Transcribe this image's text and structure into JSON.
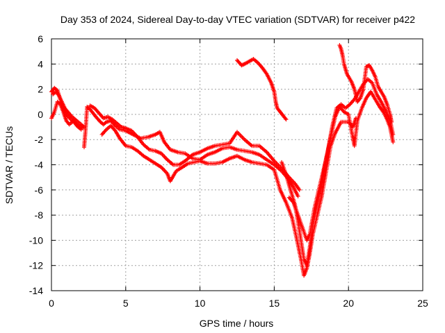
{
  "chart_data": {
    "type": "scatter",
    "title": "Day 353 of 2024, Sidereal Day-to-day VTEC variation (SDTVAR) for receiver p422",
    "xlabel": "GPS time / hours",
    "ylabel": "SDTVAR / TECUs",
    "xlim": [
      0,
      25
    ],
    "ylim": [
      -14,
      6
    ],
    "xticks": [
      0,
      5,
      10,
      15,
      20,
      25
    ],
    "yticks": [
      -14,
      -12,
      -10,
      -8,
      -6,
      -4,
      -2,
      0,
      2,
      4,
      6
    ],
    "grid": true,
    "marker": "+",
    "color": "#ff0000",
    "series": [
      {
        "points": [
          [
            0.0,
            1.8
          ],
          [
            0.2,
            2.1
          ],
          [
            0.4,
            1.9
          ],
          [
            0.6,
            1.2
          ],
          [
            0.8,
            0.6
          ],
          [
            1.0,
            0.0
          ],
          [
            1.3,
            -0.4
          ],
          [
            1.6,
            -0.7
          ],
          [
            1.9,
            -1.0
          ],
          [
            2.1,
            -1.1
          ]
        ]
      },
      {
        "points": [
          [
            0.0,
            -0.3
          ],
          [
            0.2,
            0.2
          ],
          [
            0.4,
            1.0
          ],
          [
            0.6,
            0.8
          ],
          [
            0.8,
            0.2
          ],
          [
            1.0,
            -0.5
          ],
          [
            1.2,
            -0.8
          ],
          [
            1.5,
            -0.5
          ],
          [
            1.7,
            -0.9
          ],
          [
            2.0,
            -1.2
          ]
        ]
      },
      {
        "points": [
          [
            0.1,
            1.6
          ],
          [
            0.3,
            1.8
          ],
          [
            0.5,
            1.5
          ],
          [
            0.7,
            1.0
          ],
          [
            0.9,
            0.5
          ],
          [
            1.1,
            0.2
          ],
          [
            1.4,
            -0.2
          ],
          [
            1.7,
            -0.5
          ],
          [
            2.0,
            -0.8
          ],
          [
            2.2,
            -1.0
          ]
        ]
      },
      {
        "points": [
          [
            2.2,
            -2.6
          ],
          [
            2.3,
            -1.2
          ],
          [
            2.4,
            0.6
          ],
          [
            2.6,
            0.4
          ],
          [
            2.8,
            0.1
          ],
          [
            3.0,
            -0.2
          ],
          [
            3.3,
            -0.6
          ],
          [
            3.5,
            -0.8
          ],
          [
            3.7,
            -0.6
          ],
          [
            4.0,
            -0.5
          ],
          [
            4.3,
            -0.9
          ],
          [
            4.6,
            -1.2
          ],
          [
            5.0,
            -1.3
          ],
          [
            5.5,
            -1.6
          ],
          [
            6.0,
            -1.9
          ],
          [
            6.5,
            -1.8
          ],
          [
            7.0,
            -1.6
          ],
          [
            7.3,
            -1.4
          ],
          [
            7.6,
            -2.2
          ],
          [
            8.0,
            -2.8
          ],
          [
            8.5,
            -3.0
          ],
          [
            9.0,
            -3.1
          ],
          [
            9.5,
            -3.5
          ],
          [
            10.0,
            -3.6
          ],
          [
            10.5,
            -3.2
          ],
          [
            11.0,
            -3.0
          ],
          [
            11.5,
            -2.7
          ],
          [
            12.0,
            -2.6
          ],
          [
            12.5,
            -2.8
          ],
          [
            13.0,
            -2.9
          ],
          [
            13.5,
            -3.0
          ],
          [
            14.0,
            -3.2
          ],
          [
            14.5,
            -3.6
          ],
          [
            15.0,
            -4.0
          ],
          [
            15.5,
            -4.5
          ],
          [
            16.0,
            -5.2
          ],
          [
            16.3,
            -5.8
          ],
          [
            16.6,
            -6.5
          ]
        ]
      },
      {
        "points": [
          [
            2.6,
            0.7
          ],
          [
            2.9,
            0.5
          ],
          [
            3.2,
            0.1
          ],
          [
            3.5,
            -0.3
          ],
          [
            3.8,
            -0.2
          ],
          [
            4.1,
            -0.4
          ],
          [
            4.4,
            -0.7
          ],
          [
            4.7,
            -1.0
          ],
          [
            5.0,
            -1.1
          ],
          [
            5.4,
            -1.3
          ],
          [
            5.8,
            -1.8
          ],
          [
            6.2,
            -2.4
          ],
          [
            6.6,
            -2.8
          ],
          [
            7.0,
            -2.9
          ],
          [
            7.4,
            -3.1
          ],
          [
            7.8,
            -3.6
          ],
          [
            8.2,
            -4.0
          ],
          [
            8.6,
            -4.0
          ],
          [
            9.0,
            -3.7
          ],
          [
            9.5,
            -3.2
          ],
          [
            10.0,
            -3.0
          ],
          [
            10.5,
            -2.7
          ],
          [
            11.0,
            -2.5
          ],
          [
            11.5,
            -2.4
          ],
          [
            12.0,
            -2.3
          ],
          [
            12.5,
            -1.4
          ],
          [
            13.0,
            -2.0
          ],
          [
            13.5,
            -2.5
          ],
          [
            14.0,
            -2.5
          ],
          [
            14.5,
            -3.0
          ],
          [
            15.0,
            -3.7
          ],
          [
            15.5,
            -4.3
          ],
          [
            16.0,
            -5.0
          ],
          [
            16.4,
            -5.5
          ],
          [
            16.7,
            -6.0
          ]
        ]
      },
      {
        "points": [
          [
            3.4,
            -1.6
          ],
          [
            3.7,
            -1.2
          ],
          [
            4.0,
            -0.9
          ],
          [
            4.3,
            -1.3
          ],
          [
            4.6,
            -1.9
          ],
          [
            5.0,
            -2.5
          ],
          [
            5.4,
            -2.6
          ],
          [
            5.8,
            -2.9
          ],
          [
            6.2,
            -3.3
          ],
          [
            6.6,
            -3.6
          ],
          [
            7.0,
            -3.9
          ],
          [
            7.4,
            -4.2
          ],
          [
            7.8,
            -4.7
          ],
          [
            8.0,
            -5.3
          ],
          [
            8.4,
            -4.5
          ],
          [
            8.8,
            -4.2
          ],
          [
            9.2,
            -3.9
          ],
          [
            9.6,
            -3.8
          ],
          [
            10.0,
            -3.7
          ],
          [
            10.5,
            -3.9
          ],
          [
            11.0,
            -3.9
          ],
          [
            11.5,
            -3.8
          ],
          [
            12.0,
            -3.5
          ],
          [
            12.5,
            -3.3
          ],
          [
            13.0,
            -3.6
          ],
          [
            13.5,
            -3.8
          ],
          [
            14.0,
            -3.9
          ],
          [
            14.5,
            -4.0
          ],
          [
            15.0,
            -4.4
          ],
          [
            15.4,
            -6.0
          ],
          [
            15.8,
            -7.0
          ],
          [
            16.2,
            -8.2
          ],
          [
            16.5,
            -9.8
          ],
          [
            16.8,
            -11.5
          ],
          [
            17.0,
            -12.8
          ],
          [
            17.2,
            -12.2
          ],
          [
            17.4,
            -11.0
          ],
          [
            17.6,
            -9.5
          ],
          [
            17.9,
            -8.0
          ],
          [
            18.2,
            -6.5
          ],
          [
            18.5,
            -4.5
          ],
          [
            18.8,
            -2.5
          ],
          [
            19.1,
            -1.5
          ],
          [
            19.5,
            -0.6
          ],
          [
            20.0,
            -0.6
          ],
          [
            20.3,
            -1.0
          ],
          [
            20.5,
            -0.3
          ]
        ]
      },
      {
        "points": [
          [
            15.5,
            -3.8
          ],
          [
            15.8,
            -4.8
          ],
          [
            16.1,
            -6.0
          ],
          [
            16.4,
            -7.2
          ],
          [
            16.6,
            -8.5
          ],
          [
            16.8,
            -10.0
          ],
          [
            17.0,
            -11.5
          ],
          [
            17.2,
            -12.0
          ],
          [
            17.4,
            -10.5
          ],
          [
            17.6,
            -8.8
          ],
          [
            17.9,
            -7.0
          ],
          [
            18.2,
            -5.5
          ],
          [
            18.5,
            -3.5
          ],
          [
            18.8,
            -1.8
          ],
          [
            19.1,
            -0.2
          ],
          [
            19.4,
            0.6
          ],
          [
            19.7,
            0.2
          ],
          [
            20.0,
            0.0
          ],
          [
            20.2,
            -1.3
          ],
          [
            20.4,
            -2.5
          ],
          [
            20.6,
            -0.5
          ],
          [
            20.9,
            0.5
          ],
          [
            21.2,
            1.3
          ],
          [
            21.5,
            1.8
          ],
          [
            21.8,
            1.2
          ],
          [
            22.1,
            0.6
          ],
          [
            22.4,
            0.1
          ],
          [
            22.6,
            -0.4
          ],
          [
            22.8,
            -1.0
          ],
          [
            23.0,
            -2.2
          ]
        ]
      },
      {
        "points": [
          [
            16.0,
            -6.6
          ],
          [
            16.3,
            -7.0
          ],
          [
            16.6,
            -8.0
          ],
          [
            16.9,
            -9.0
          ],
          [
            17.2,
            -10.0
          ],
          [
            17.4,
            -9.5
          ],
          [
            17.7,
            -7.5
          ],
          [
            18.0,
            -6.0
          ],
          [
            18.3,
            -4.5
          ],
          [
            18.6,
            -3.0
          ],
          [
            18.9,
            -1.0
          ],
          [
            19.2,
            0.5
          ],
          [
            19.5,
            0.8
          ],
          [
            19.8,
            0.5
          ],
          [
            20.1,
            0.8
          ],
          [
            20.4,
            1.2
          ],
          [
            20.7,
            1.8
          ],
          [
            21.0,
            2.4
          ],
          [
            21.3,
            2.8
          ],
          [
            21.6,
            2.5
          ],
          [
            21.9,
            1.6
          ],
          [
            22.2,
            1.0
          ],
          [
            22.5,
            0.3
          ],
          [
            22.8,
            -0.5
          ],
          [
            23.0,
            -1.6
          ]
        ]
      },
      {
        "points": [
          [
            12.5,
            4.3
          ],
          [
            12.8,
            3.9
          ],
          [
            13.0,
            4.0
          ],
          [
            13.3,
            4.2
          ],
          [
            13.6,
            4.4
          ],
          [
            13.9,
            4.1
          ],
          [
            14.2,
            3.7
          ],
          [
            14.5,
            3.2
          ],
          [
            14.8,
            2.5
          ],
          [
            15.0,
            1.8
          ],
          [
            15.1,
            1.0
          ],
          [
            15.2,
            0.5
          ],
          [
            15.4,
            0.2
          ],
          [
            15.6,
            -0.1
          ],
          [
            15.8,
            -0.4
          ]
        ]
      },
      {
        "points": [
          [
            19.4,
            5.5
          ],
          [
            19.5,
            5.2
          ],
          [
            19.6,
            4.7
          ],
          [
            19.7,
            4.0
          ],
          [
            19.8,
            3.6
          ],
          [
            19.9,
            3.2
          ],
          [
            20.0,
            3.0
          ],
          [
            20.2,
            2.6
          ],
          [
            20.4,
            2.0
          ],
          [
            20.6,
            1.0
          ],
          [
            20.8,
            1.3
          ],
          [
            21.0,
            2.0
          ],
          [
            21.2,
            3.8
          ],
          [
            21.4,
            3.9
          ],
          [
            21.6,
            3.5
          ],
          [
            21.8,
            3.0
          ],
          [
            22.0,
            2.2
          ],
          [
            22.2,
            1.8
          ],
          [
            22.4,
            1.4
          ],
          [
            22.6,
            0.8
          ],
          [
            22.8,
            0.0
          ],
          [
            22.9,
            -0.6
          ]
        ]
      }
    ]
  }
}
